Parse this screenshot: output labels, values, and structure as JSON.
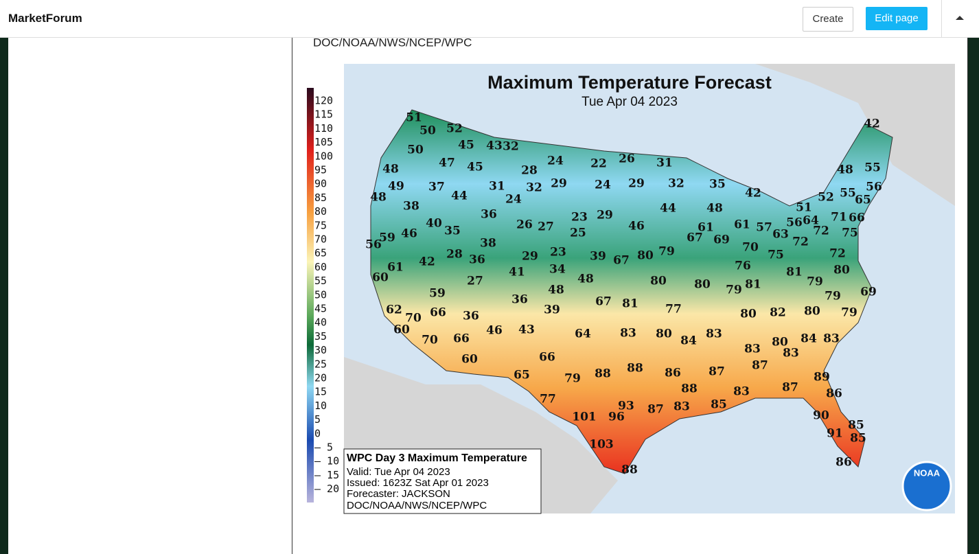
{
  "header": {
    "site_name": "MarketForum",
    "create_button": "Create",
    "edit_button": "Edit page"
  },
  "content": {
    "source_line": "DOC/NOAA/NWS/NCEP/WPC"
  },
  "map": {
    "title": "Maximum Temperature Forecast",
    "date": "Tue Apr 04 2023",
    "legend_ticks": [
      "120",
      "115",
      "110",
      "105",
      "100",
      "95",
      "90",
      "85",
      "80",
      "75",
      "70",
      "65",
      "60",
      "55",
      "50",
      "45",
      "40",
      "35",
      "30",
      "25",
      "20",
      "15",
      "10",
      "5",
      "0",
      "– 5",
      "– 10",
      "– 15",
      "– 20"
    ],
    "info_box": {
      "heading": "WPC Day 3 Maximum Temperature",
      "valid": "Valid: Tue Apr 04 2023",
      "issued": "Issued: 1623Z Sat Apr 01 2023",
      "forecaster": "Forecaster: JACKSON",
      "source": "DOC/NOAA/NWS/NCEP/WPC"
    },
    "logo": "NOAA",
    "temperature_labels": [
      "51",
      "50",
      "52",
      "45",
      "43",
      "32",
      "50",
      "47",
      "45",
      "48",
      "49",
      "37",
      "31",
      "28",
      "24",
      "22",
      "26",
      "31",
      "32",
      "29",
      "24",
      "29",
      "32",
      "35",
      "42",
      "48",
      "44",
      "24",
      "38",
      "36",
      "23",
      "29",
      "44",
      "48",
      "40",
      "35",
      "26",
      "27",
      "25",
      "46",
      "61",
      "61",
      "57",
      "56",
      "59",
      "46",
      "38",
      "67",
      "69",
      "70",
      "63",
      "56",
      "64",
      "72",
      "71",
      "66",
      "75",
      "72",
      "51",
      "52",
      "55",
      "65",
      "56",
      "55",
      "48",
      "42",
      "42",
      "28",
      "36",
      "29",
      "23",
      "39",
      "67",
      "80",
      "79",
      "76",
      "75",
      "81",
      "79",
      "72",
      "80",
      "79",
      "69",
      "79",
      "61",
      "60",
      "34",
      "41",
      "27",
      "48",
      "80",
      "80",
      "79",
      "81",
      "59",
      "48",
      "36",
      "67",
      "81",
      "77",
      "80",
      "82",
      "80",
      "62",
      "70",
      "66",
      "36",
      "39",
      "60",
      "70",
      "66",
      "46",
      "43",
      "64",
      "83",
      "80",
      "84",
      "83",
      "83",
      "80",
      "84",
      "83",
      "83",
      "60",
      "66",
      "87",
      "87",
      "65",
      "79",
      "88",
      "88",
      "86",
      "88",
      "83",
      "87",
      "89",
      "86",
      "77",
      "93",
      "87",
      "83",
      "85",
      "101",
      "96",
      "90",
      "85",
      "91",
      "85",
      "103",
      "88",
      "86"
    ]
  }
}
